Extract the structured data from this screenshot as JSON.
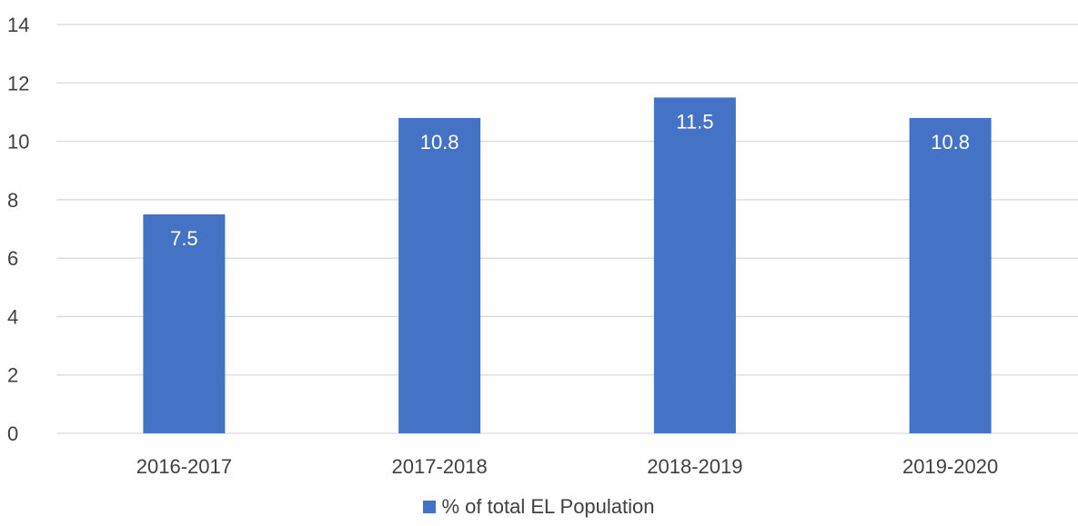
{
  "chart_data": {
    "type": "bar",
    "categories": [
      "2016-2017",
      "2017-2018",
      "2018-2019",
      "2019-2020"
    ],
    "series": [
      {
        "name": "% of total EL Population",
        "values": [
          7.5,
          10.8,
          11.5,
          10.8
        ],
        "color": "#4472C4"
      }
    ],
    "ylim": [
      0,
      14
    ],
    "yticks": [
      "0",
      "2",
      "4",
      "6",
      "8",
      "10",
      "12",
      "14"
    ],
    "data_labels": [
      "7.5",
      "10.8",
      "11.5",
      "10.8"
    ],
    "grid": true,
    "legend_position": "bottom",
    "gridline_color": "#d9d9d9"
  }
}
